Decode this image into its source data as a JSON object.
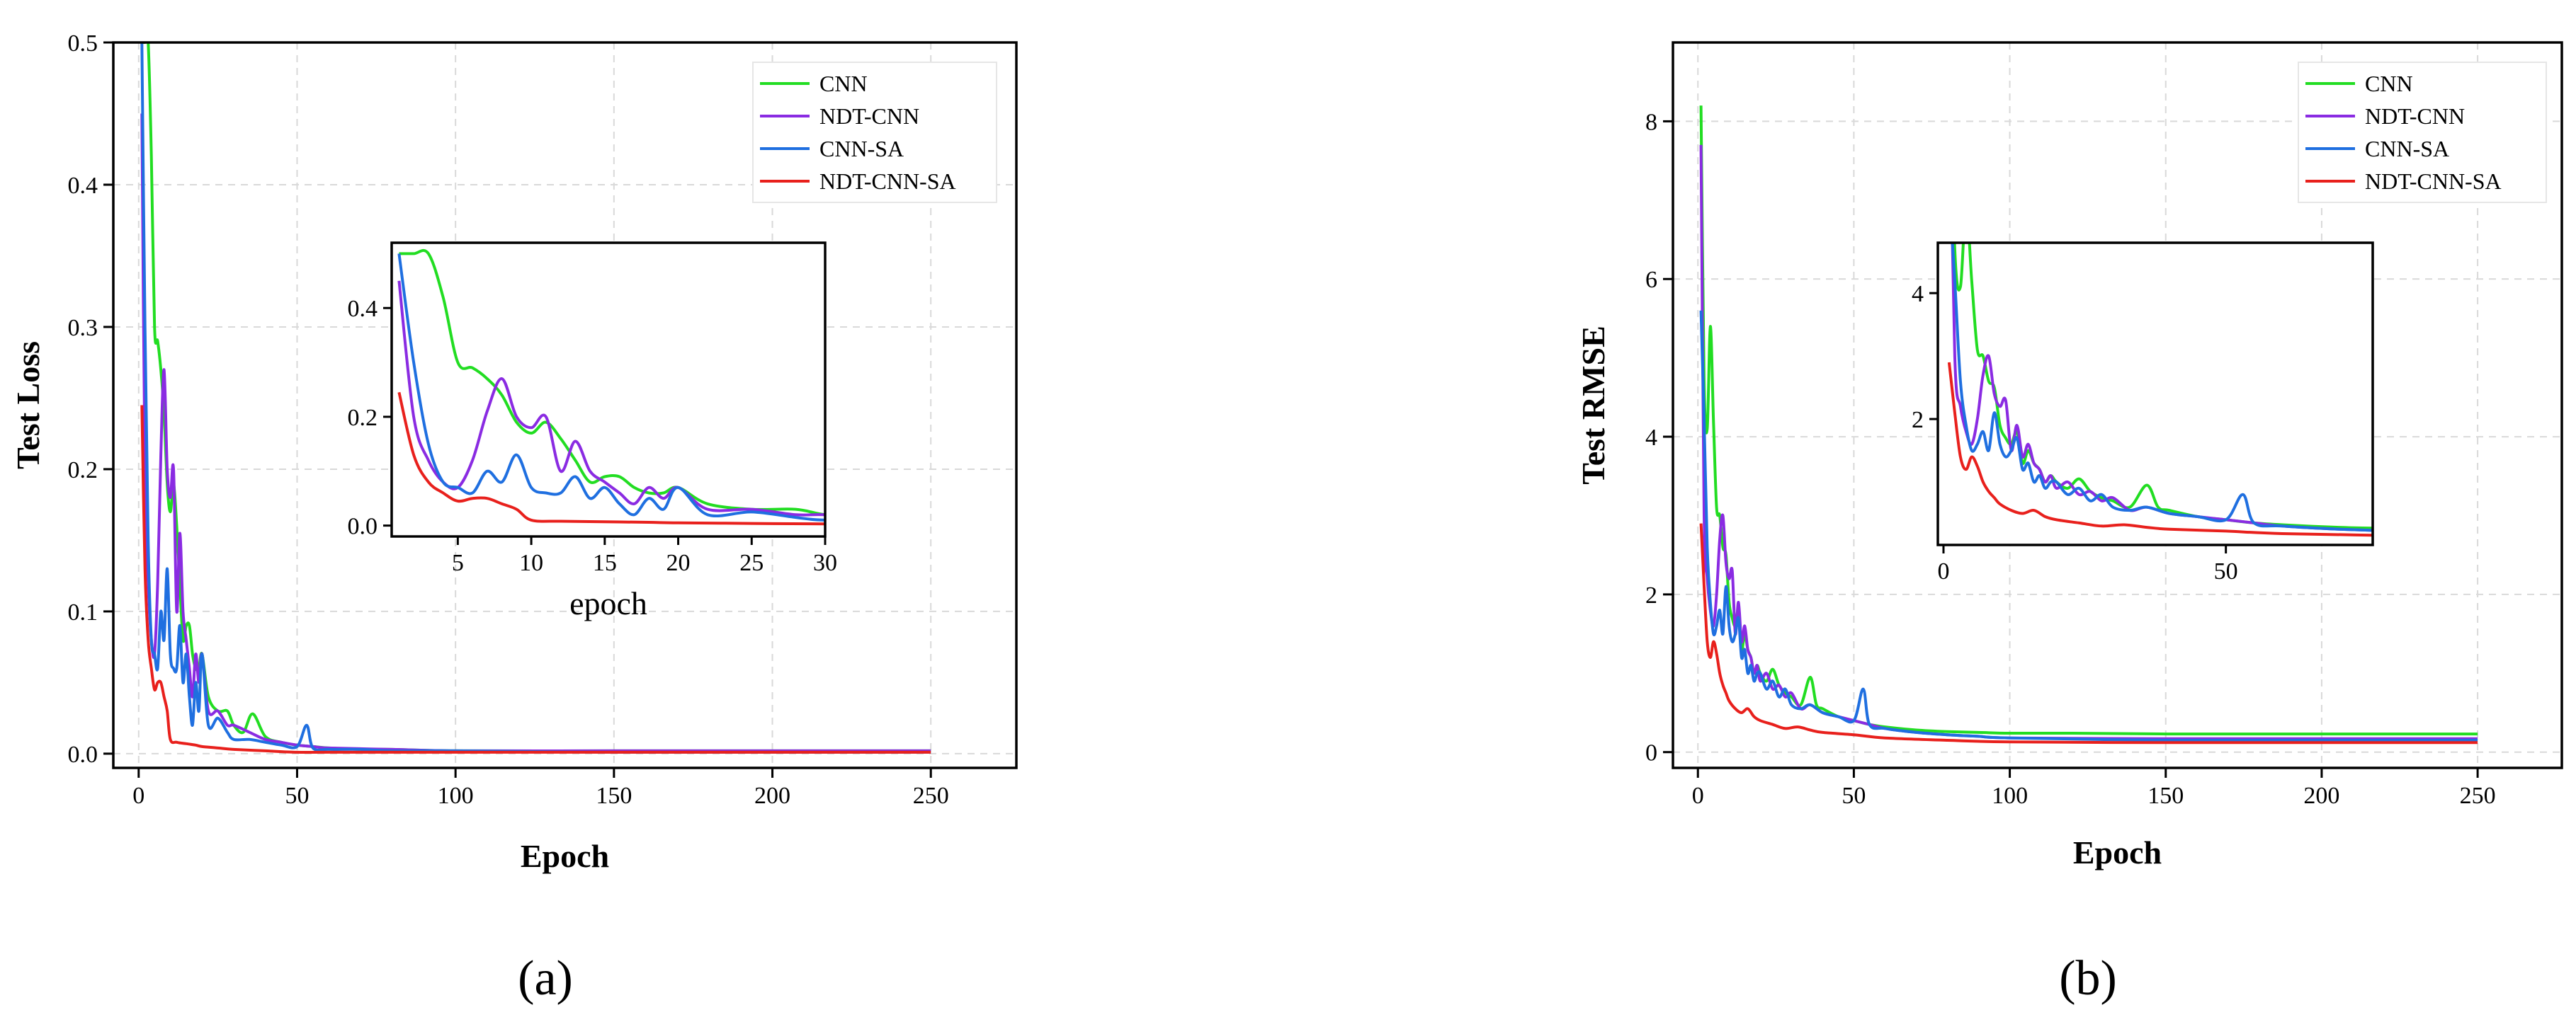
{
  "chart_data": [
    {
      "type": "line",
      "panel_label": "(a)",
      "xlabel": "Epoch",
      "ylabel": "Test Loss",
      "xlim": [
        -8,
        277
      ],
      "ylim": [
        -0.01,
        0.5
      ],
      "xticks": [
        0,
        50,
        100,
        150,
        200,
        250
      ],
      "yticks": [
        0.0,
        0.1,
        0.2,
        0.3,
        0.4,
        0.5
      ],
      "ytick_labels": [
        "0.0",
        "0.1",
        "0.2",
        "0.3",
        "0.4",
        "0.5"
      ],
      "legend_position": "top-right",
      "series": [
        {
          "name": "CNN",
          "color": "#22dd22",
          "x": [
            1,
            2,
            3,
            4,
            5,
            6,
            7,
            8,
            9,
            10,
            11,
            12,
            13,
            14,
            15,
            16,
            17,
            18,
            19,
            20,
            22,
            25,
            28,
            30,
            33,
            36,
            40,
            45,
            50,
            55,
            60,
            70,
            80,
            100,
            150,
            200,
            250
          ],
          "y": [
            0.5,
            0.5,
            0.5,
            0.42,
            0.3,
            0.29,
            0.27,
            0.24,
            0.19,
            0.17,
            0.19,
            0.16,
            0.12,
            0.08,
            0.09,
            0.09,
            0.07,
            0.06,
            0.06,
            0.07,
            0.04,
            0.03,
            0.03,
            0.02,
            0.015,
            0.028,
            0.012,
            0.008,
            0.006,
            0.005,
            0.004,
            0.003,
            0.003,
            0.002,
            0.002,
            0.002,
            0.002
          ]
        },
        {
          "name": "NDT-CNN",
          "color": "#8a2be2",
          "x": [
            1,
            2,
            3,
            4,
            5,
            6,
            7,
            8,
            9,
            10,
            11,
            12,
            13,
            14,
            15,
            16,
            17,
            18,
            19,
            20,
            22,
            25,
            28,
            30,
            35,
            40,
            45,
            50,
            55,
            60,
            80,
            100,
            150,
            200,
            250
          ],
          "y": [
            0.45,
            0.2,
            0.12,
            0.08,
            0.07,
            0.12,
            0.21,
            0.27,
            0.2,
            0.18,
            0.2,
            0.1,
            0.155,
            0.1,
            0.08,
            0.06,
            0.04,
            0.07,
            0.05,
            0.07,
            0.03,
            0.03,
            0.02,
            0.02,
            0.015,
            0.01,
            0.008,
            0.006,
            0.005,
            0.004,
            0.003,
            0.002,
            0.002,
            0.002,
            0.002
          ]
        },
        {
          "name": "CNN-SA",
          "color": "#1f6fe0",
          "x": [
            1,
            2,
            3,
            4,
            5,
            6,
            7,
            8,
            9,
            10,
            11,
            12,
            13,
            14,
            15,
            16,
            17,
            18,
            19,
            20,
            22,
            25,
            28,
            30,
            35,
            40,
            45,
            50,
            53,
            55,
            60,
            70,
            80,
            100,
            150,
            200,
            250
          ],
          "y": [
            0.5,
            0.3,
            0.15,
            0.08,
            0.07,
            0.06,
            0.1,
            0.08,
            0.13,
            0.07,
            0.06,
            0.06,
            0.09,
            0.05,
            0.07,
            0.04,
            0.02,
            0.05,
            0.03,
            0.07,
            0.02,
            0.025,
            0.015,
            0.01,
            0.01,
            0.008,
            0.006,
            0.005,
            0.02,
            0.004,
            0.003,
            0.003,
            0.002,
            0.002,
            0.001,
            0.001,
            0.001
          ]
        },
        {
          "name": "NDT-CNN-SA",
          "color": "#e8201c",
          "x": [
            1,
            2,
            3,
            4,
            5,
            6,
            7,
            8,
            9,
            10,
            12,
            15,
            18,
            20,
            25,
            30,
            40,
            50,
            60,
            100,
            150,
            200,
            250
          ],
          "y": [
            0.245,
            0.13,
            0.08,
            0.06,
            0.045,
            0.05,
            0.05,
            0.04,
            0.03,
            0.01,
            0.008,
            0.007,
            0.006,
            0.005,
            0.004,
            0.003,
            0.002,
            0.001,
            0.001,
            0.001,
            0.001,
            0.001,
            0.001
          ]
        }
      ],
      "inset": {
        "xlabel": "epoch",
        "xlim": [
          0.5,
          30
        ],
        "ylim": [
          -0.02,
          0.52
        ],
        "xticks": [
          5,
          10,
          15,
          20,
          25,
          30
        ],
        "yticks": [
          0.0,
          0.2,
          0.4
        ],
        "ytick_labels": [
          "0.0",
          "0.2",
          "0.4"
        ]
      }
    },
    {
      "type": "line",
      "panel_label": "(b)",
      "xlabel": "Epoch",
      "ylabel": "Test RMSE",
      "xlim": [
        -8,
        277
      ],
      "ylim": [
        -0.2,
        9.0
      ],
      "xticks": [
        0,
        50,
        100,
        150,
        200,
        250
      ],
      "yticks": [
        0,
        2,
        4,
        6,
        8
      ],
      "ytick_labels": [
        "0",
        "2",
        "4",
        "6",
        "8"
      ],
      "legend_position": "top-right",
      "series": [
        {
          "name": "CNN",
          "color": "#22dd22",
          "x": [
            1,
            2,
            3,
            4,
            5,
            6,
            7,
            8,
            9,
            10,
            11,
            12,
            13,
            14,
            15,
            16,
            17,
            18,
            19,
            20,
            22,
            24,
            26,
            28,
            30,
            33,
            36,
            38,
            40,
            45,
            50,
            55,
            60,
            70,
            80,
            90,
            100,
            120,
            150,
            200,
            250
          ],
          "y": [
            8.2,
            4.7,
            4.1,
            5.4,
            4.2,
            3.1,
            3.0,
            2.6,
            2.5,
            1.9,
            1.7,
            1.6,
            1.8,
            1.3,
            1.5,
            1.3,
            1.2,
            1.0,
            1.1,
            1.0,
            0.9,
            1.05,
            0.85,
            0.75,
            0.7,
            0.6,
            0.95,
            0.6,
            0.55,
            0.45,
            0.4,
            0.35,
            0.32,
            0.28,
            0.26,
            0.25,
            0.24,
            0.24,
            0.23,
            0.23,
            0.23
          ]
        },
        {
          "name": "NDT-CNN",
          "color": "#8a2be2",
          "x": [
            1,
            2,
            3,
            4,
            5,
            6,
            7,
            8,
            9,
            10,
            11,
            12,
            13,
            14,
            15,
            16,
            17,
            18,
            19,
            20,
            22,
            24,
            26,
            28,
            30,
            33,
            36,
            40,
            45,
            50,
            55,
            60,
            70,
            80,
            90,
            100,
            150,
            200,
            250
          ],
          "y": [
            7.7,
            3.0,
            2.2,
            1.8,
            1.6,
            2.0,
            2.7,
            3.0,
            2.4,
            2.2,
            2.3,
            1.5,
            1.9,
            1.4,
            1.6,
            1.3,
            1.2,
            1.0,
            1.1,
            0.9,
            1.0,
            0.8,
            0.85,
            0.7,
            0.75,
            0.55,
            0.6,
            0.5,
            0.45,
            0.4,
            0.35,
            0.3,
            0.25,
            0.22,
            0.2,
            0.18,
            0.17,
            0.17,
            0.17
          ]
        },
        {
          "name": "CNN-SA",
          "color": "#1f6fe0",
          "x": [
            1,
            2,
            3,
            4,
            5,
            6,
            7,
            8,
            9,
            10,
            11,
            12,
            13,
            14,
            15,
            16,
            17,
            18,
            19,
            20,
            22,
            24,
            26,
            28,
            30,
            33,
            36,
            40,
            45,
            50,
            53,
            55,
            60,
            70,
            80,
            90,
            100,
            150,
            200,
            250
          ],
          "y": [
            5.6,
            4.2,
            2.6,
            1.9,
            1.5,
            1.6,
            1.8,
            1.5,
            2.1,
            1.6,
            1.4,
            1.5,
            1.7,
            1.2,
            1.3,
            1.0,
            1.1,
            0.9,
            1.0,
            1.0,
            0.8,
            0.9,
            0.7,
            0.8,
            0.6,
            0.55,
            0.6,
            0.5,
            0.45,
            0.4,
            0.8,
            0.35,
            0.3,
            0.25,
            0.22,
            0.2,
            0.18,
            0.15,
            0.15,
            0.15
          ]
        },
        {
          "name": "NDT-CNN-SA",
          "color": "#e8201c",
          "x": [
            1,
            2,
            3,
            4,
            5,
            6,
            7,
            8,
            9,
            10,
            12,
            14,
            16,
            18,
            20,
            24,
            28,
            32,
            36,
            40,
            50,
            60,
            80,
            100,
            150,
            200,
            250
          ],
          "y": [
            2.9,
            2.1,
            1.4,
            1.2,
            1.4,
            1.25,
            1.0,
            0.85,
            0.75,
            0.65,
            0.55,
            0.5,
            0.55,
            0.45,
            0.4,
            0.35,
            0.3,
            0.32,
            0.28,
            0.25,
            0.22,
            0.18,
            0.15,
            0.13,
            0.12,
            0.12,
            0.12
          ]
        }
      ],
      "inset": {
        "xlabel": "",
        "xlim": [
          -1,
          76
        ],
        "ylim": [
          0.0,
          4.8
        ],
        "xticks": [
          0,
          50
        ],
        "yticks": [
          2,
          4
        ],
        "ytick_labels": [
          "2",
          "4"
        ]
      }
    }
  ]
}
